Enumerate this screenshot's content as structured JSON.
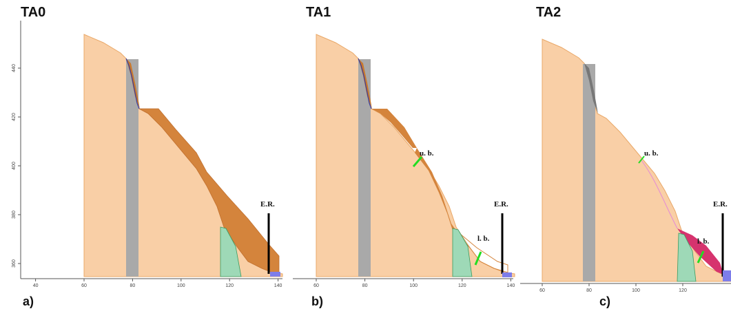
{
  "panels": [
    {
      "title": "TA0",
      "label": "a)",
      "xticks": [
        40,
        60,
        80,
        100,
        120,
        140
      ],
      "yticks": [
        360,
        380,
        400,
        420,
        440
      ],
      "annotations": [
        "E.R."
      ]
    },
    {
      "title": "TA1",
      "label": "b)",
      "xticks": [
        60,
        80,
        100,
        120,
        140
      ],
      "annotations": [
        "u. b.",
        "l. b.",
        "E.R."
      ]
    },
    {
      "title": "TA2",
      "label": "c)",
      "xticks": [
        60,
        80,
        100,
        120
      ],
      "annotations": [
        "u. b.",
        "l. b.",
        "E.R."
      ]
    }
  ]
}
